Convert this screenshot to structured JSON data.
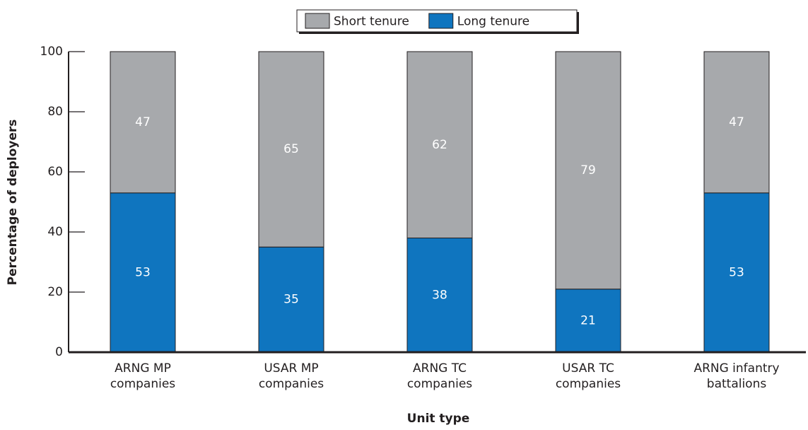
{
  "chart_data": {
    "type": "stacked_bar",
    "xlabel": "Unit type",
    "ylabel": "Percentage of deployers",
    "categories": [
      "ARNG MP companies",
      "USAR MP companies",
      "ARNG TC companies",
      "USAR TC companies",
      "ARNG infantry battalions"
    ],
    "series": [
      {
        "name": "Long tenure",
        "color": "#0f75bf",
        "values": [
          53,
          35,
          38,
          21,
          53
        ]
      },
      {
        "name": "Short tenure",
        "color": "#a7a9ac",
        "values": [
          47,
          65,
          62,
          79,
          47
        ]
      }
    ],
    "legend_order": [
      1,
      0
    ],
    "ylim": [
      0,
      100
    ],
    "yticks": [
      0,
      20,
      40,
      60,
      80,
      100
    ]
  }
}
